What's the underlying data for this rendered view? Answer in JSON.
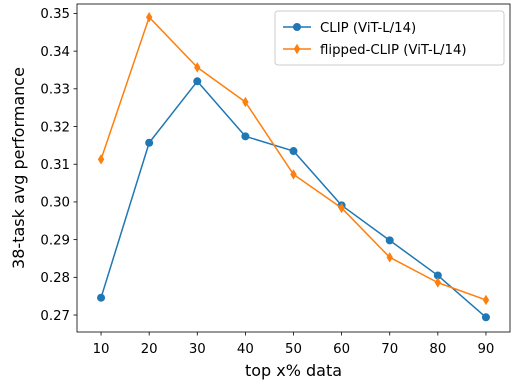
{
  "chart_data": {
    "type": "line",
    "title": "",
    "xlabel": "top x% data",
    "ylabel": "38-task avg performance",
    "x": [
      10,
      20,
      30,
      40,
      50,
      60,
      70,
      80,
      90
    ],
    "xlim": [
      5,
      95
    ],
    "ylim": [
      0.2655,
      0.3525
    ],
    "xticks": [
      "10",
      "20",
      "30",
      "40",
      "50",
      "60",
      "70",
      "80",
      "90"
    ],
    "yticks": [
      "0.27",
      "0.28",
      "0.29",
      "0.30",
      "0.31",
      "0.32",
      "0.33",
      "0.34",
      "0.35"
    ],
    "ytick_values": [
      0.27,
      0.28,
      0.29,
      0.3,
      0.31,
      0.32,
      0.33,
      0.34,
      0.35
    ],
    "grid": false,
    "legend_position": "top-right",
    "series": [
      {
        "name": "CLIP (ViT-L/14)",
        "color": "#1f77b4",
        "marker": "circle",
        "values": [
          0.2746,
          0.3157,
          0.332,
          0.3174,
          0.3135,
          0.2991,
          0.2898,
          0.2805,
          0.2694
        ]
      },
      {
        "name": "flipped-CLIP (ViT-L/14)",
        "color": "#ff7f0e",
        "marker": "thin_diamond",
        "values": [
          0.3113,
          0.349,
          0.3357,
          0.3265,
          0.3073,
          0.2984,
          0.2853,
          0.2786,
          0.274
        ]
      }
    ]
  }
}
